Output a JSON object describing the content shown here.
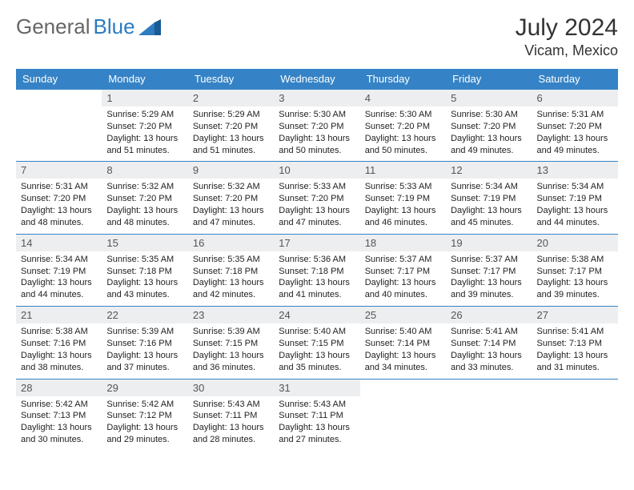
{
  "brand": {
    "part1": "General",
    "part2": "Blue"
  },
  "title": "July 2024",
  "location": "Vicam, Mexico",
  "colors": {
    "header_bg": "#3583c6",
    "header_fg": "#ffffff",
    "daynum_bg": "#eceef0",
    "rule": "#3583c6"
  },
  "weekdays": [
    "Sunday",
    "Monday",
    "Tuesday",
    "Wednesday",
    "Thursday",
    "Friday",
    "Saturday"
  ],
  "weeks": [
    [
      null,
      {
        "n": "1",
        "sr": "Sunrise: 5:29 AM",
        "ss": "Sunset: 7:20 PM",
        "dl": "Daylight: 13 hours and 51 minutes."
      },
      {
        "n": "2",
        "sr": "Sunrise: 5:29 AM",
        "ss": "Sunset: 7:20 PM",
        "dl": "Daylight: 13 hours and 51 minutes."
      },
      {
        "n": "3",
        "sr": "Sunrise: 5:30 AM",
        "ss": "Sunset: 7:20 PM",
        "dl": "Daylight: 13 hours and 50 minutes."
      },
      {
        "n": "4",
        "sr": "Sunrise: 5:30 AM",
        "ss": "Sunset: 7:20 PM",
        "dl": "Daylight: 13 hours and 50 minutes."
      },
      {
        "n": "5",
        "sr": "Sunrise: 5:30 AM",
        "ss": "Sunset: 7:20 PM",
        "dl": "Daylight: 13 hours and 49 minutes."
      },
      {
        "n": "6",
        "sr": "Sunrise: 5:31 AM",
        "ss": "Sunset: 7:20 PM",
        "dl": "Daylight: 13 hours and 49 minutes."
      }
    ],
    [
      {
        "n": "7",
        "sr": "Sunrise: 5:31 AM",
        "ss": "Sunset: 7:20 PM",
        "dl": "Daylight: 13 hours and 48 minutes."
      },
      {
        "n": "8",
        "sr": "Sunrise: 5:32 AM",
        "ss": "Sunset: 7:20 PM",
        "dl": "Daylight: 13 hours and 48 minutes."
      },
      {
        "n": "9",
        "sr": "Sunrise: 5:32 AM",
        "ss": "Sunset: 7:20 PM",
        "dl": "Daylight: 13 hours and 47 minutes."
      },
      {
        "n": "10",
        "sr": "Sunrise: 5:33 AM",
        "ss": "Sunset: 7:20 PM",
        "dl": "Daylight: 13 hours and 47 minutes."
      },
      {
        "n": "11",
        "sr": "Sunrise: 5:33 AM",
        "ss": "Sunset: 7:19 PM",
        "dl": "Daylight: 13 hours and 46 minutes."
      },
      {
        "n": "12",
        "sr": "Sunrise: 5:34 AM",
        "ss": "Sunset: 7:19 PM",
        "dl": "Daylight: 13 hours and 45 minutes."
      },
      {
        "n": "13",
        "sr": "Sunrise: 5:34 AM",
        "ss": "Sunset: 7:19 PM",
        "dl": "Daylight: 13 hours and 44 minutes."
      }
    ],
    [
      {
        "n": "14",
        "sr": "Sunrise: 5:34 AM",
        "ss": "Sunset: 7:19 PM",
        "dl": "Daylight: 13 hours and 44 minutes."
      },
      {
        "n": "15",
        "sr": "Sunrise: 5:35 AM",
        "ss": "Sunset: 7:18 PM",
        "dl": "Daylight: 13 hours and 43 minutes."
      },
      {
        "n": "16",
        "sr": "Sunrise: 5:35 AM",
        "ss": "Sunset: 7:18 PM",
        "dl": "Daylight: 13 hours and 42 minutes."
      },
      {
        "n": "17",
        "sr": "Sunrise: 5:36 AM",
        "ss": "Sunset: 7:18 PM",
        "dl": "Daylight: 13 hours and 41 minutes."
      },
      {
        "n": "18",
        "sr": "Sunrise: 5:37 AM",
        "ss": "Sunset: 7:17 PM",
        "dl": "Daylight: 13 hours and 40 minutes."
      },
      {
        "n": "19",
        "sr": "Sunrise: 5:37 AM",
        "ss": "Sunset: 7:17 PM",
        "dl": "Daylight: 13 hours and 39 minutes."
      },
      {
        "n": "20",
        "sr": "Sunrise: 5:38 AM",
        "ss": "Sunset: 7:17 PM",
        "dl": "Daylight: 13 hours and 39 minutes."
      }
    ],
    [
      {
        "n": "21",
        "sr": "Sunrise: 5:38 AM",
        "ss": "Sunset: 7:16 PM",
        "dl": "Daylight: 13 hours and 38 minutes."
      },
      {
        "n": "22",
        "sr": "Sunrise: 5:39 AM",
        "ss": "Sunset: 7:16 PM",
        "dl": "Daylight: 13 hours and 37 minutes."
      },
      {
        "n": "23",
        "sr": "Sunrise: 5:39 AM",
        "ss": "Sunset: 7:15 PM",
        "dl": "Daylight: 13 hours and 36 minutes."
      },
      {
        "n": "24",
        "sr": "Sunrise: 5:40 AM",
        "ss": "Sunset: 7:15 PM",
        "dl": "Daylight: 13 hours and 35 minutes."
      },
      {
        "n": "25",
        "sr": "Sunrise: 5:40 AM",
        "ss": "Sunset: 7:14 PM",
        "dl": "Daylight: 13 hours and 34 minutes."
      },
      {
        "n": "26",
        "sr": "Sunrise: 5:41 AM",
        "ss": "Sunset: 7:14 PM",
        "dl": "Daylight: 13 hours and 33 minutes."
      },
      {
        "n": "27",
        "sr": "Sunrise: 5:41 AM",
        "ss": "Sunset: 7:13 PM",
        "dl": "Daylight: 13 hours and 31 minutes."
      }
    ],
    [
      {
        "n": "28",
        "sr": "Sunrise: 5:42 AM",
        "ss": "Sunset: 7:13 PM",
        "dl": "Daylight: 13 hours and 30 minutes."
      },
      {
        "n": "29",
        "sr": "Sunrise: 5:42 AM",
        "ss": "Sunset: 7:12 PM",
        "dl": "Daylight: 13 hours and 29 minutes."
      },
      {
        "n": "30",
        "sr": "Sunrise: 5:43 AM",
        "ss": "Sunset: 7:11 PM",
        "dl": "Daylight: 13 hours and 28 minutes."
      },
      {
        "n": "31",
        "sr": "Sunrise: 5:43 AM",
        "ss": "Sunset: 7:11 PM",
        "dl": "Daylight: 13 hours and 27 minutes."
      },
      null,
      null,
      null
    ]
  ]
}
